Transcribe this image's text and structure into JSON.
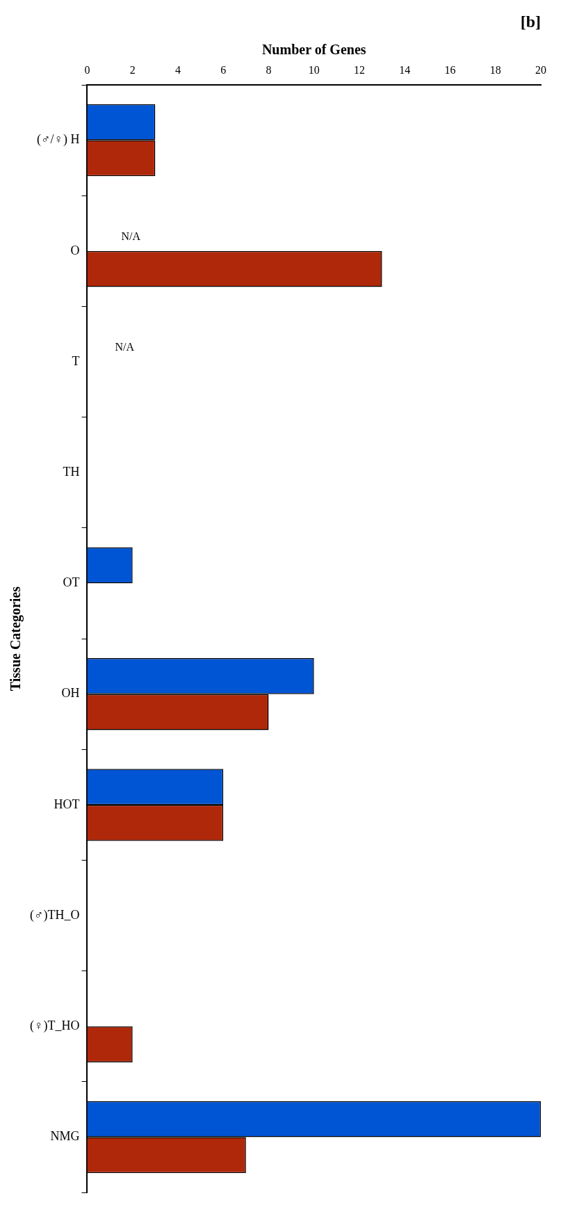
{
  "chart_data": {
    "type": "bar",
    "orientation": "horizontal",
    "title": "[b]",
    "xlabel": "Number of Genes",
    "ylabel": "Tissue Categories",
    "categories": [
      "(♂/♀) H",
      "O",
      "T",
      "TH",
      "OT",
      "OH",
      "HOT",
      "(♂)TH_O",
      "(♀)T_HO",
      "NMG"
    ],
    "series": [
      {
        "color": "#0055d4",
        "values": [
          3,
          null,
          null,
          0,
          2,
          10,
          6,
          0,
          0,
          20
        ]
      },
      {
        "color": "#b0280a",
        "values": [
          3,
          13,
          null,
          0,
          0,
          8,
          6,
          0,
          2,
          7
        ]
      }
    ],
    "xlim": [
      0,
      20
    ],
    "xticks": [
      0,
      2,
      4,
      6,
      8,
      10,
      12,
      14,
      16,
      18,
      20
    ],
    "grid": false,
    "legend": false,
    "annotations": [
      {
        "text": "N/A",
        "x": 1.5,
        "y": "O"
      },
      "N/A"
    ]
  }
}
